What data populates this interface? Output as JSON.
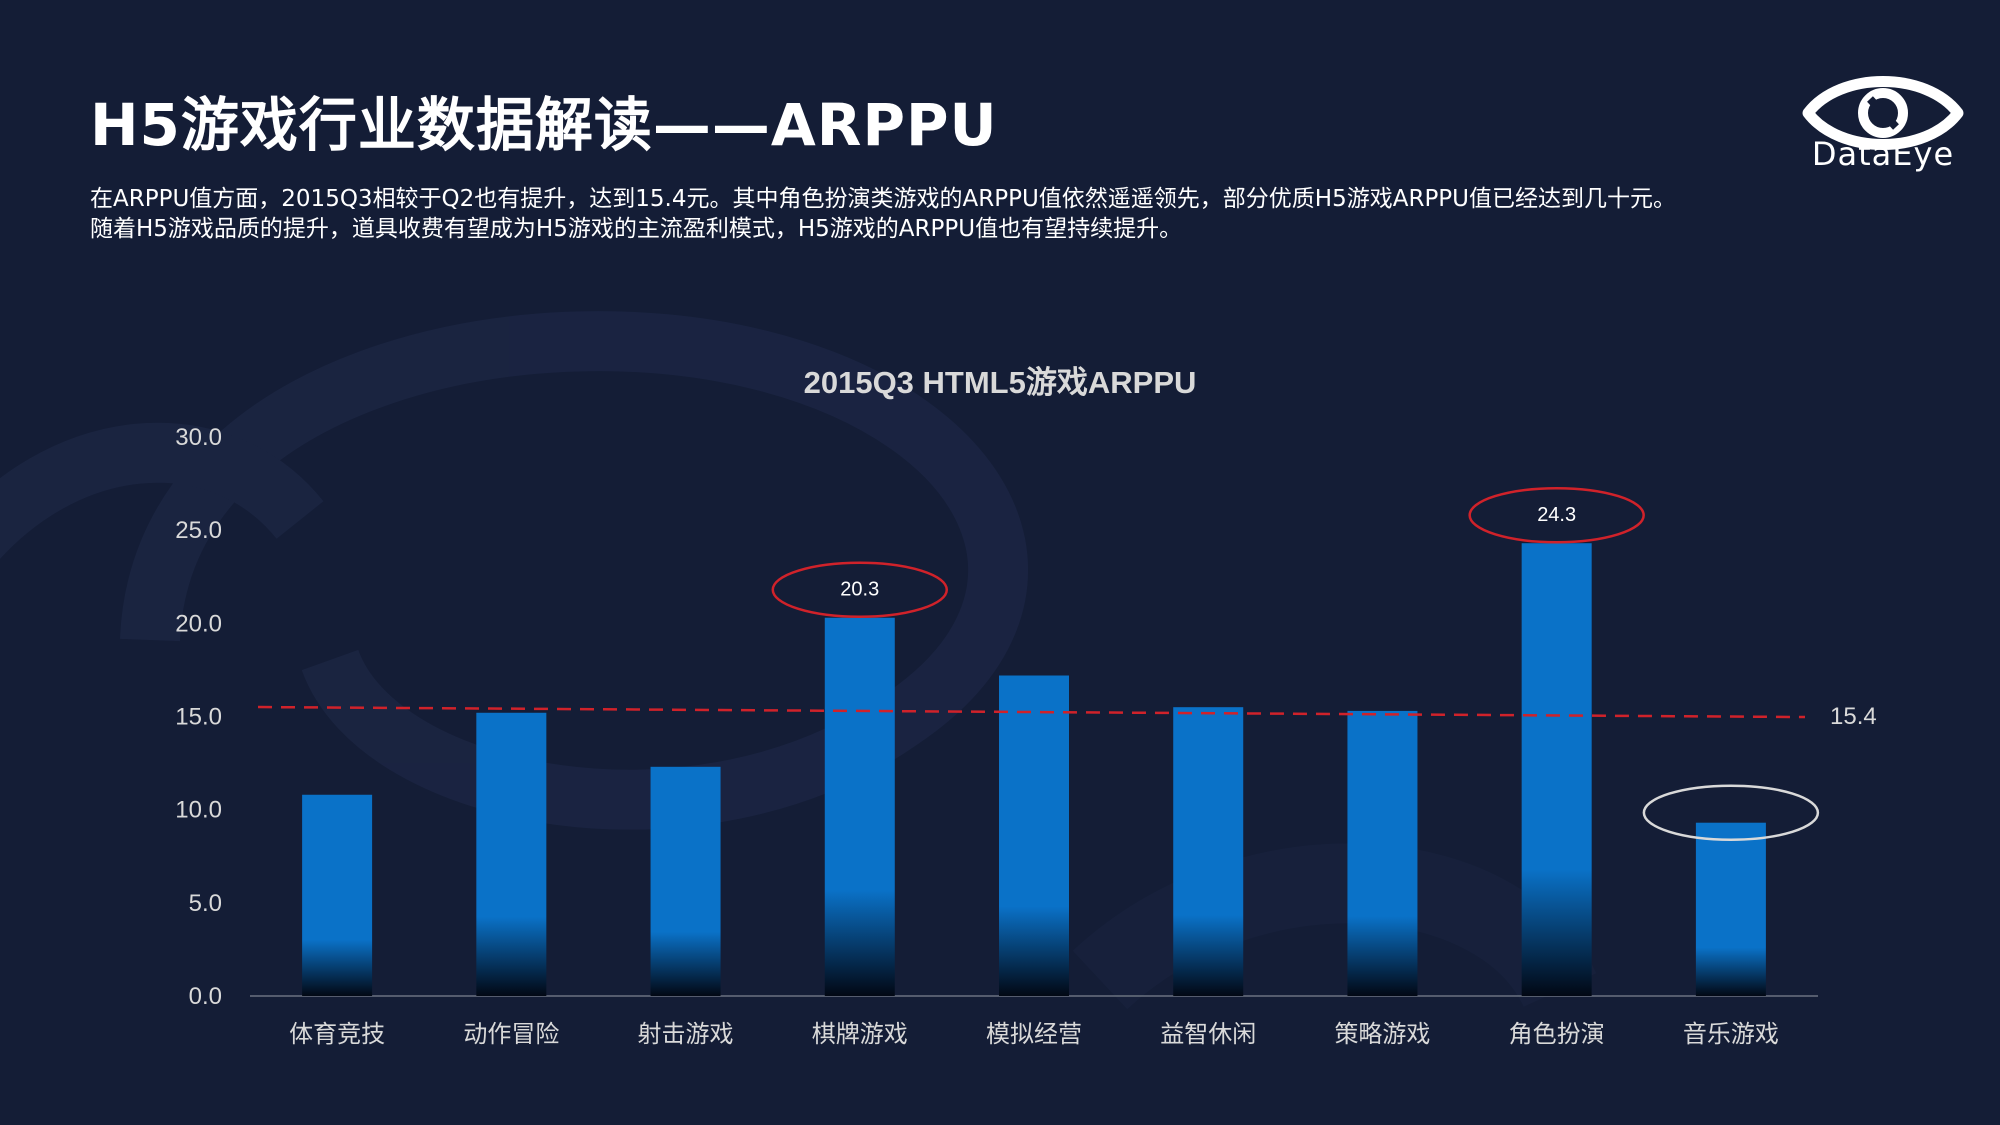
{
  "header": {
    "title": "H5游戏行业数据解读——ARPPU",
    "description_line1": "在ARPPU值方面，2015Q3相较于Q2也有提升，达到15.4元。其中角色扮演类游戏的ARPPU值依然遥遥领先，部分优质H5游戏ARPPU值已经达到几十元。",
    "description_line2": "随着H5游戏品质的提升，道具收费有望成为H5游戏的主流盈利模式，H5游戏的ARPPU值也有望持续提升。"
  },
  "logo": {
    "text": "DataEye",
    "icon": "eye-icon"
  },
  "colors": {
    "background": "#141d36",
    "bar": "#0a72c8",
    "average_line": "#d0222a",
    "highlight_red": "#d0222a",
    "highlight_white": "#d9d9d9"
  },
  "chart_data": {
    "type": "bar",
    "title": "2015Q3 HTML5游戏ARPPU",
    "categories": [
      "体育竞技",
      "动作冒险",
      "射击游戏",
      "棋牌游戏",
      "模拟经营",
      "益智休闲",
      "策略游戏",
      "角色扮演",
      "音乐游戏"
    ],
    "values": [
      10.8,
      15.2,
      12.3,
      20.3,
      17.2,
      15.5,
      15.3,
      24.3,
      9.3
    ],
    "data_labels": {
      "棋牌游戏": "20.3",
      "角色扮演": "24.3"
    },
    "y_ticks": [
      "0.0",
      "5.0",
      "10.0",
      "15.0",
      "20.0",
      "25.0",
      "30.0"
    ],
    "ylim": [
      0,
      30
    ],
    "average": {
      "value": 15.4,
      "label": "15.4"
    },
    "highlights": [
      {
        "category": "棋牌游戏",
        "color": "red"
      },
      {
        "category": "角色扮演",
        "color": "red"
      },
      {
        "category": "音乐游戏",
        "color": "white"
      }
    ],
    "grid": false,
    "legend": "none"
  }
}
